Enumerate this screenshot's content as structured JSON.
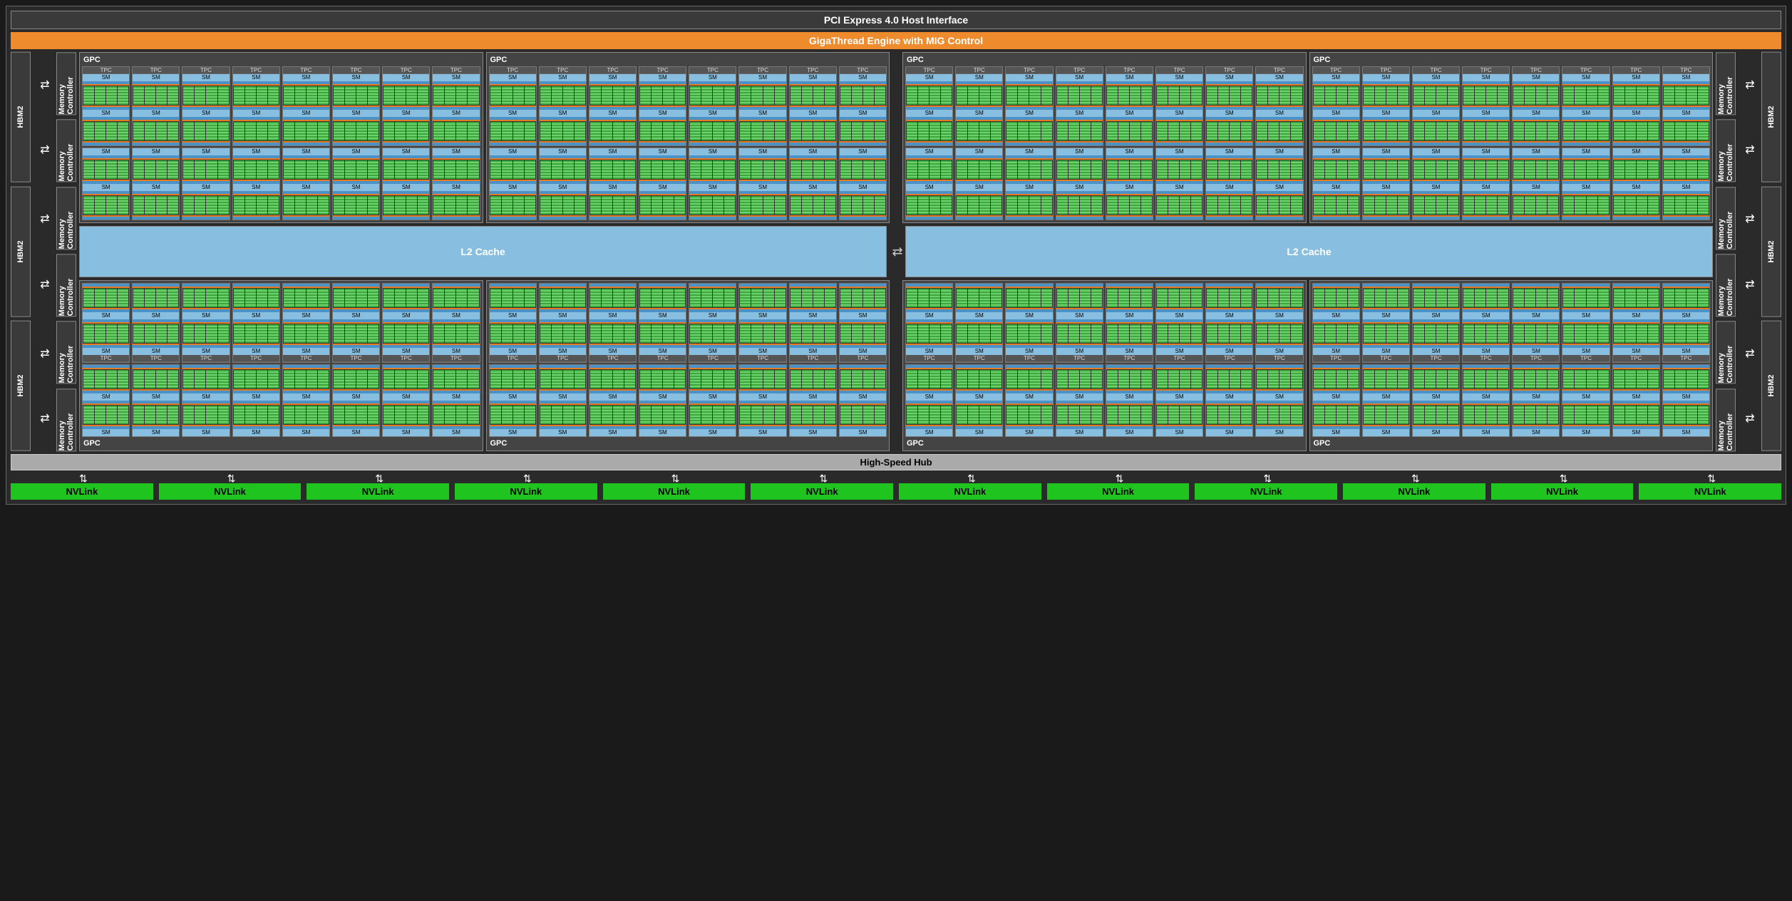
{
  "labels": {
    "pcie": "PCI Express 4.0 Host Interface",
    "gigathread": "GigaThread Engine with MIG Control",
    "hbm": "HBM2",
    "memctl": "Memory Controller",
    "gpc": "GPC",
    "tpc": "TPC",
    "sm": "SM",
    "l2": "L2 Cache",
    "hub": "High-Speed Hub",
    "nvlink": "NVLink"
  },
  "counts": {
    "gpc_cols": 4,
    "gpc_rows": 2,
    "tpc_per_gpc": 8,
    "sm_rows_per_tpc": 2,
    "nvlinks": 12,
    "hbm_per_side": 3,
    "memctl_per_hbm": 2
  },
  "colors": {
    "background": "#1a1a1a",
    "chip_bg": "#2a2a2a",
    "block_bg": "#3a3a3a",
    "block_border": "#888888",
    "gigathread_bg": "#ee8b2d",
    "l2_bg": "#88bfe0",
    "sm_label_bg": "#88bfe0",
    "sm_bar_blue": "#4a92c8",
    "sm_bar_orange": "#e87b1f",
    "core_green1": "#3ca83c",
    "core_green2": "#6fd06f",
    "nvlink_bg": "#1fc41f",
    "hub_bg": "#aaaaaa",
    "text_light": "#ffffff"
  },
  "glyphs": {
    "bidir_h": "⇄",
    "bidir_v": "⇅"
  }
}
